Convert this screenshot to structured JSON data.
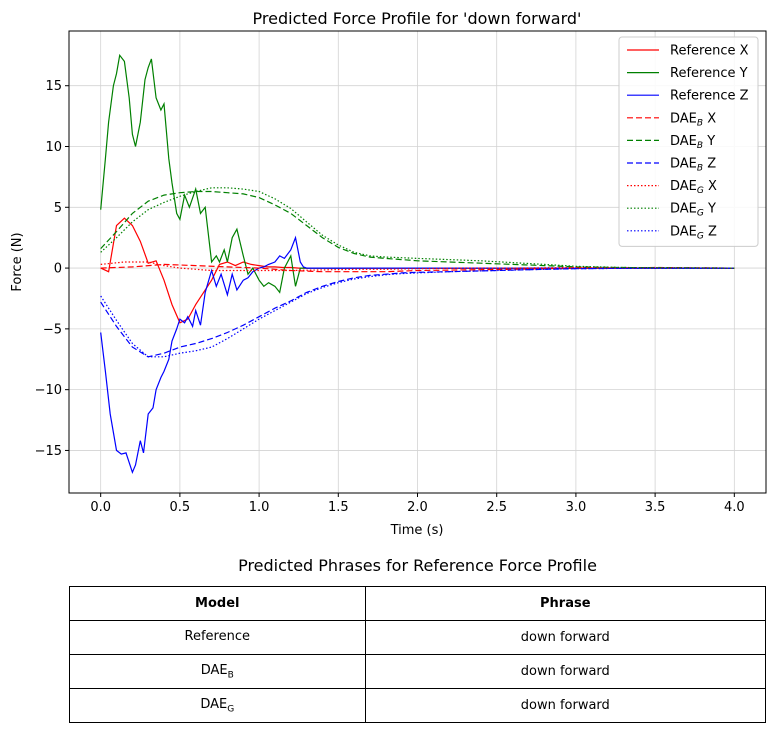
{
  "chart_data": {
    "type": "line",
    "title": "Predicted Force Profile for 'down forward'",
    "xlabel": "Time (s)",
    "ylabel": "Force (N)",
    "xlim": [
      -0.2,
      4.2
    ],
    "ylim": [
      -18.5,
      19.5
    ],
    "xticks": [
      0.0,
      0.5,
      1.0,
      1.5,
      2.0,
      2.5,
      3.0,
      3.5,
      4.0
    ],
    "xtick_labels": [
      "0.0",
      "0.5",
      "1.0",
      "1.5",
      "2.0",
      "2.5",
      "3.0",
      "3.5",
      "4.0"
    ],
    "yticks": [
      -15,
      -10,
      -5,
      0,
      5,
      10,
      15
    ],
    "ytick_labels": [
      "−15",
      "−10",
      "−5",
      "0",
      "5",
      "10",
      "15"
    ],
    "grid": true,
    "legend_position": "top-right",
    "series": [
      {
        "name": "Reference X",
        "base": "Reference",
        "sub": "",
        "axis": "X",
        "color": "#ff0000",
        "dash": "solid",
        "x": [
          0,
          0.05,
          0.1,
          0.15,
          0.2,
          0.25,
          0.3,
          0.35,
          0.4,
          0.45,
          0.5,
          0.55,
          0.6,
          0.65,
          0.7,
          0.75,
          0.8,
          0.85,
          0.9,
          0.95,
          1.0,
          1.05,
          1.1,
          1.15,
          1.2,
          1.25,
          1.3,
          4.0
        ],
        "y": [
          0,
          -0.3,
          3.5,
          4.1,
          3.5,
          2.2,
          0.4,
          0.6,
          -1,
          -3,
          -4.5,
          -4.2,
          -3,
          -2,
          -1,
          0.3,
          0.5,
          0.2,
          0.5,
          0.3,
          0.2,
          0.1,
          0.1,
          0.05,
          0.05,
          0,
          0,
          0
        ]
      },
      {
        "name": "Reference Y",
        "base": "Reference",
        "sub": "",
        "axis": "Y",
        "color": "#008000",
        "dash": "solid",
        "x": [
          0,
          0.03,
          0.05,
          0.08,
          0.1,
          0.12,
          0.15,
          0.18,
          0.2,
          0.22,
          0.25,
          0.28,
          0.3,
          0.32,
          0.35,
          0.38,
          0.4,
          0.43,
          0.45,
          0.48,
          0.5,
          0.53,
          0.56,
          0.6,
          0.63,
          0.66,
          0.7,
          0.73,
          0.75,
          0.78,
          0.8,
          0.83,
          0.86,
          0.9,
          0.93,
          0.96,
          1.0,
          1.03,
          1.06,
          1.1,
          1.13,
          1.16,
          1.2,
          1.23,
          1.26,
          1.3,
          4.0
        ],
        "y": [
          4.8,
          9,
          12,
          15,
          16,
          17.5,
          17,
          14,
          11,
          10,
          12,
          15.5,
          16.5,
          17.2,
          14,
          13,
          13.5,
          9,
          7,
          4.5,
          4,
          6,
          5,
          6.5,
          4.5,
          5,
          0.5,
          1,
          0.5,
          1.5,
          0.5,
          2.5,
          3.2,
          1,
          -0.5,
          0,
          -1,
          -1.5,
          -1.2,
          -1.5,
          -2,
          0,
          1,
          -1.5,
          0,
          0,
          0
        ]
      },
      {
        "name": "Reference Z",
        "base": "Reference",
        "sub": "",
        "axis": "Z",
        "color": "#0000ff",
        "dash": "solid",
        "x": [
          0,
          0.03,
          0.06,
          0.1,
          0.13,
          0.16,
          0.2,
          0.22,
          0.25,
          0.27,
          0.3,
          0.33,
          0.35,
          0.38,
          0.4,
          0.43,
          0.45,
          0.48,
          0.5,
          0.53,
          0.55,
          0.58,
          0.6,
          0.63,
          0.66,
          0.7,
          0.73,
          0.76,
          0.8,
          0.83,
          0.86,
          0.9,
          0.93,
          0.96,
          1.0,
          1.03,
          1.06,
          1.1,
          1.13,
          1.16,
          1.2,
          1.23,
          1.26,
          1.28,
          1.3,
          4.0
        ],
        "y": [
          -5.3,
          -8.5,
          -12,
          -15,
          -15.3,
          -15.2,
          -16.8,
          -16.2,
          -14.2,
          -15.2,
          -12,
          -11.5,
          -10,
          -9,
          -8.5,
          -7.5,
          -6,
          -5,
          -4.2,
          -4.5,
          -4,
          -4.8,
          -3.5,
          -4.7,
          -2,
          -0.2,
          -1.5,
          -0.5,
          -2.2,
          -0.5,
          -1.8,
          -1,
          -0.8,
          -0.3,
          0,
          0.1,
          0.3,
          0.5,
          1,
          0.8,
          1.5,
          2.5,
          0.5,
          0.1,
          0,
          0
        ]
      },
      {
        "name": "DAEB X",
        "base": "DAE",
        "sub": "B",
        "axis": "X",
        "color": "#ff0000",
        "dash": "6,3",
        "x": [
          0,
          0.2,
          0.4,
          0.6,
          0.8,
          1.0,
          1.2,
          1.4,
          1.6,
          1.8,
          2.0,
          2.3,
          2.6,
          3.0,
          3.5,
          4.0
        ],
        "y": [
          0,
          0.1,
          0.3,
          0.2,
          0.1,
          0,
          -0.2,
          -0.3,
          -0.3,
          -0.3,
          -0.2,
          -0.15,
          -0.1,
          0,
          0.05,
          0
        ]
      },
      {
        "name": "DAEB Y",
        "base": "DAE",
        "sub": "B",
        "axis": "Y",
        "color": "#008000",
        "dash": "6,3",
        "x": [
          0,
          0.1,
          0.2,
          0.3,
          0.4,
          0.5,
          0.6,
          0.7,
          0.8,
          0.9,
          1.0,
          1.1,
          1.2,
          1.3,
          1.4,
          1.5,
          1.6,
          1.7,
          1.8,
          1.9,
          2.0,
          2.2,
          2.4,
          2.6,
          2.8,
          3.0,
          3.3,
          3.6,
          4.0
        ],
        "y": [
          1.6,
          3,
          4.5,
          5.5,
          6,
          6.2,
          6.3,
          6.3,
          6.2,
          6.1,
          5.8,
          5.2,
          4.5,
          3.5,
          2.5,
          1.7,
          1.2,
          0.9,
          0.8,
          0.7,
          0.6,
          0.5,
          0.4,
          0.3,
          0.2,
          0.1,
          0.05,
          0.02,
          0
        ]
      },
      {
        "name": "DAEB Z",
        "base": "DAE",
        "sub": "B",
        "axis": "Z",
        "color": "#0000ff",
        "dash": "6,3",
        "x": [
          0,
          0.1,
          0.2,
          0.3,
          0.4,
          0.5,
          0.6,
          0.7,
          0.8,
          0.9,
          1.0,
          1.1,
          1.2,
          1.3,
          1.4,
          1.5,
          1.6,
          1.7,
          1.8,
          1.9,
          2.0,
          2.2,
          2.5,
          2.8,
          3.0,
          3.5,
          4.0
        ],
        "y": [
          -2.8,
          -4.8,
          -6.5,
          -7.3,
          -7,
          -6.5,
          -6.2,
          -5.8,
          -5.3,
          -4.7,
          -4,
          -3.3,
          -2.7,
          -2,
          -1.5,
          -1.1,
          -0.8,
          -0.6,
          -0.5,
          -0.4,
          -0.35,
          -0.3,
          -0.2,
          -0.1,
          -0.05,
          0,
          0
        ]
      },
      {
        "name": "DAEG X",
        "base": "DAE",
        "sub": "G",
        "axis": "X",
        "color": "#ff0000",
        "dash": "1.5,2",
        "x": [
          0,
          0.15,
          0.3,
          0.4,
          0.5,
          0.6,
          0.7,
          0.8,
          1.0,
          1.2,
          1.4,
          1.6,
          1.8,
          2.0,
          2.3,
          2.6,
          3.0,
          3.5,
          4.0
        ],
        "y": [
          0.3,
          0.5,
          0.5,
          0.2,
          0,
          -0.1,
          -0.2,
          -0.2,
          -0.2,
          -0.2,
          -0.15,
          -0.1,
          -0.1,
          -0.05,
          0,
          0,
          0.05,
          0.02,
          0
        ]
      },
      {
        "name": "DAEG Y",
        "base": "DAE",
        "sub": "G",
        "axis": "Y",
        "color": "#008000",
        "dash": "1.5,2",
        "x": [
          0,
          0.1,
          0.2,
          0.3,
          0.4,
          0.5,
          0.6,
          0.7,
          0.8,
          0.9,
          1.0,
          1.1,
          1.2,
          1.3,
          1.4,
          1.5,
          1.6,
          1.7,
          1.8,
          1.9,
          2.0,
          2.2,
          2.4,
          2.6,
          2.8,
          3.0,
          3.3,
          3.6,
          4.0
        ],
        "y": [
          1.3,
          2.5,
          3.8,
          4.8,
          5.4,
          5.9,
          6.3,
          6.6,
          6.6,
          6.5,
          6.3,
          5.7,
          4.9,
          3.8,
          2.7,
          1.9,
          1.3,
          1,
          0.9,
          0.85,
          0.8,
          0.7,
          0.6,
          0.45,
          0.3,
          0.15,
          0.05,
          0.02,
          0
        ]
      },
      {
        "name": "DAEG Z",
        "base": "DAE",
        "sub": "G",
        "axis": "Z",
        "color": "#0000ff",
        "dash": "1.5,2",
        "x": [
          0,
          0.1,
          0.2,
          0.3,
          0.4,
          0.5,
          0.6,
          0.7,
          0.8,
          0.9,
          1.0,
          1.1,
          1.2,
          1.3,
          1.4,
          1.5,
          1.6,
          1.7,
          1.8,
          1.9,
          2.0,
          2.2,
          2.5,
          2.8,
          3.0,
          3.5,
          4.0
        ],
        "y": [
          -2.3,
          -4.3,
          -6.2,
          -7.3,
          -7.3,
          -7,
          -6.8,
          -6.5,
          -5.8,
          -5,
          -4.2,
          -3.5,
          -2.8,
          -2.1,
          -1.6,
          -1.2,
          -0.9,
          -0.7,
          -0.55,
          -0.45,
          -0.4,
          -0.3,
          -0.2,
          -0.1,
          -0.05,
          0,
          0
        ]
      }
    ]
  },
  "table": {
    "title": "Predicted Phrases for Reference Force Profile",
    "headers": [
      "Model",
      "Phrase"
    ],
    "rows": [
      {
        "model": "Reference",
        "model_sub": "",
        "phrase": "down forward"
      },
      {
        "model": "DAE",
        "model_sub": "B",
        "phrase": "down forward"
      },
      {
        "model": "DAE",
        "model_sub": "G",
        "phrase": "down forward"
      }
    ]
  }
}
